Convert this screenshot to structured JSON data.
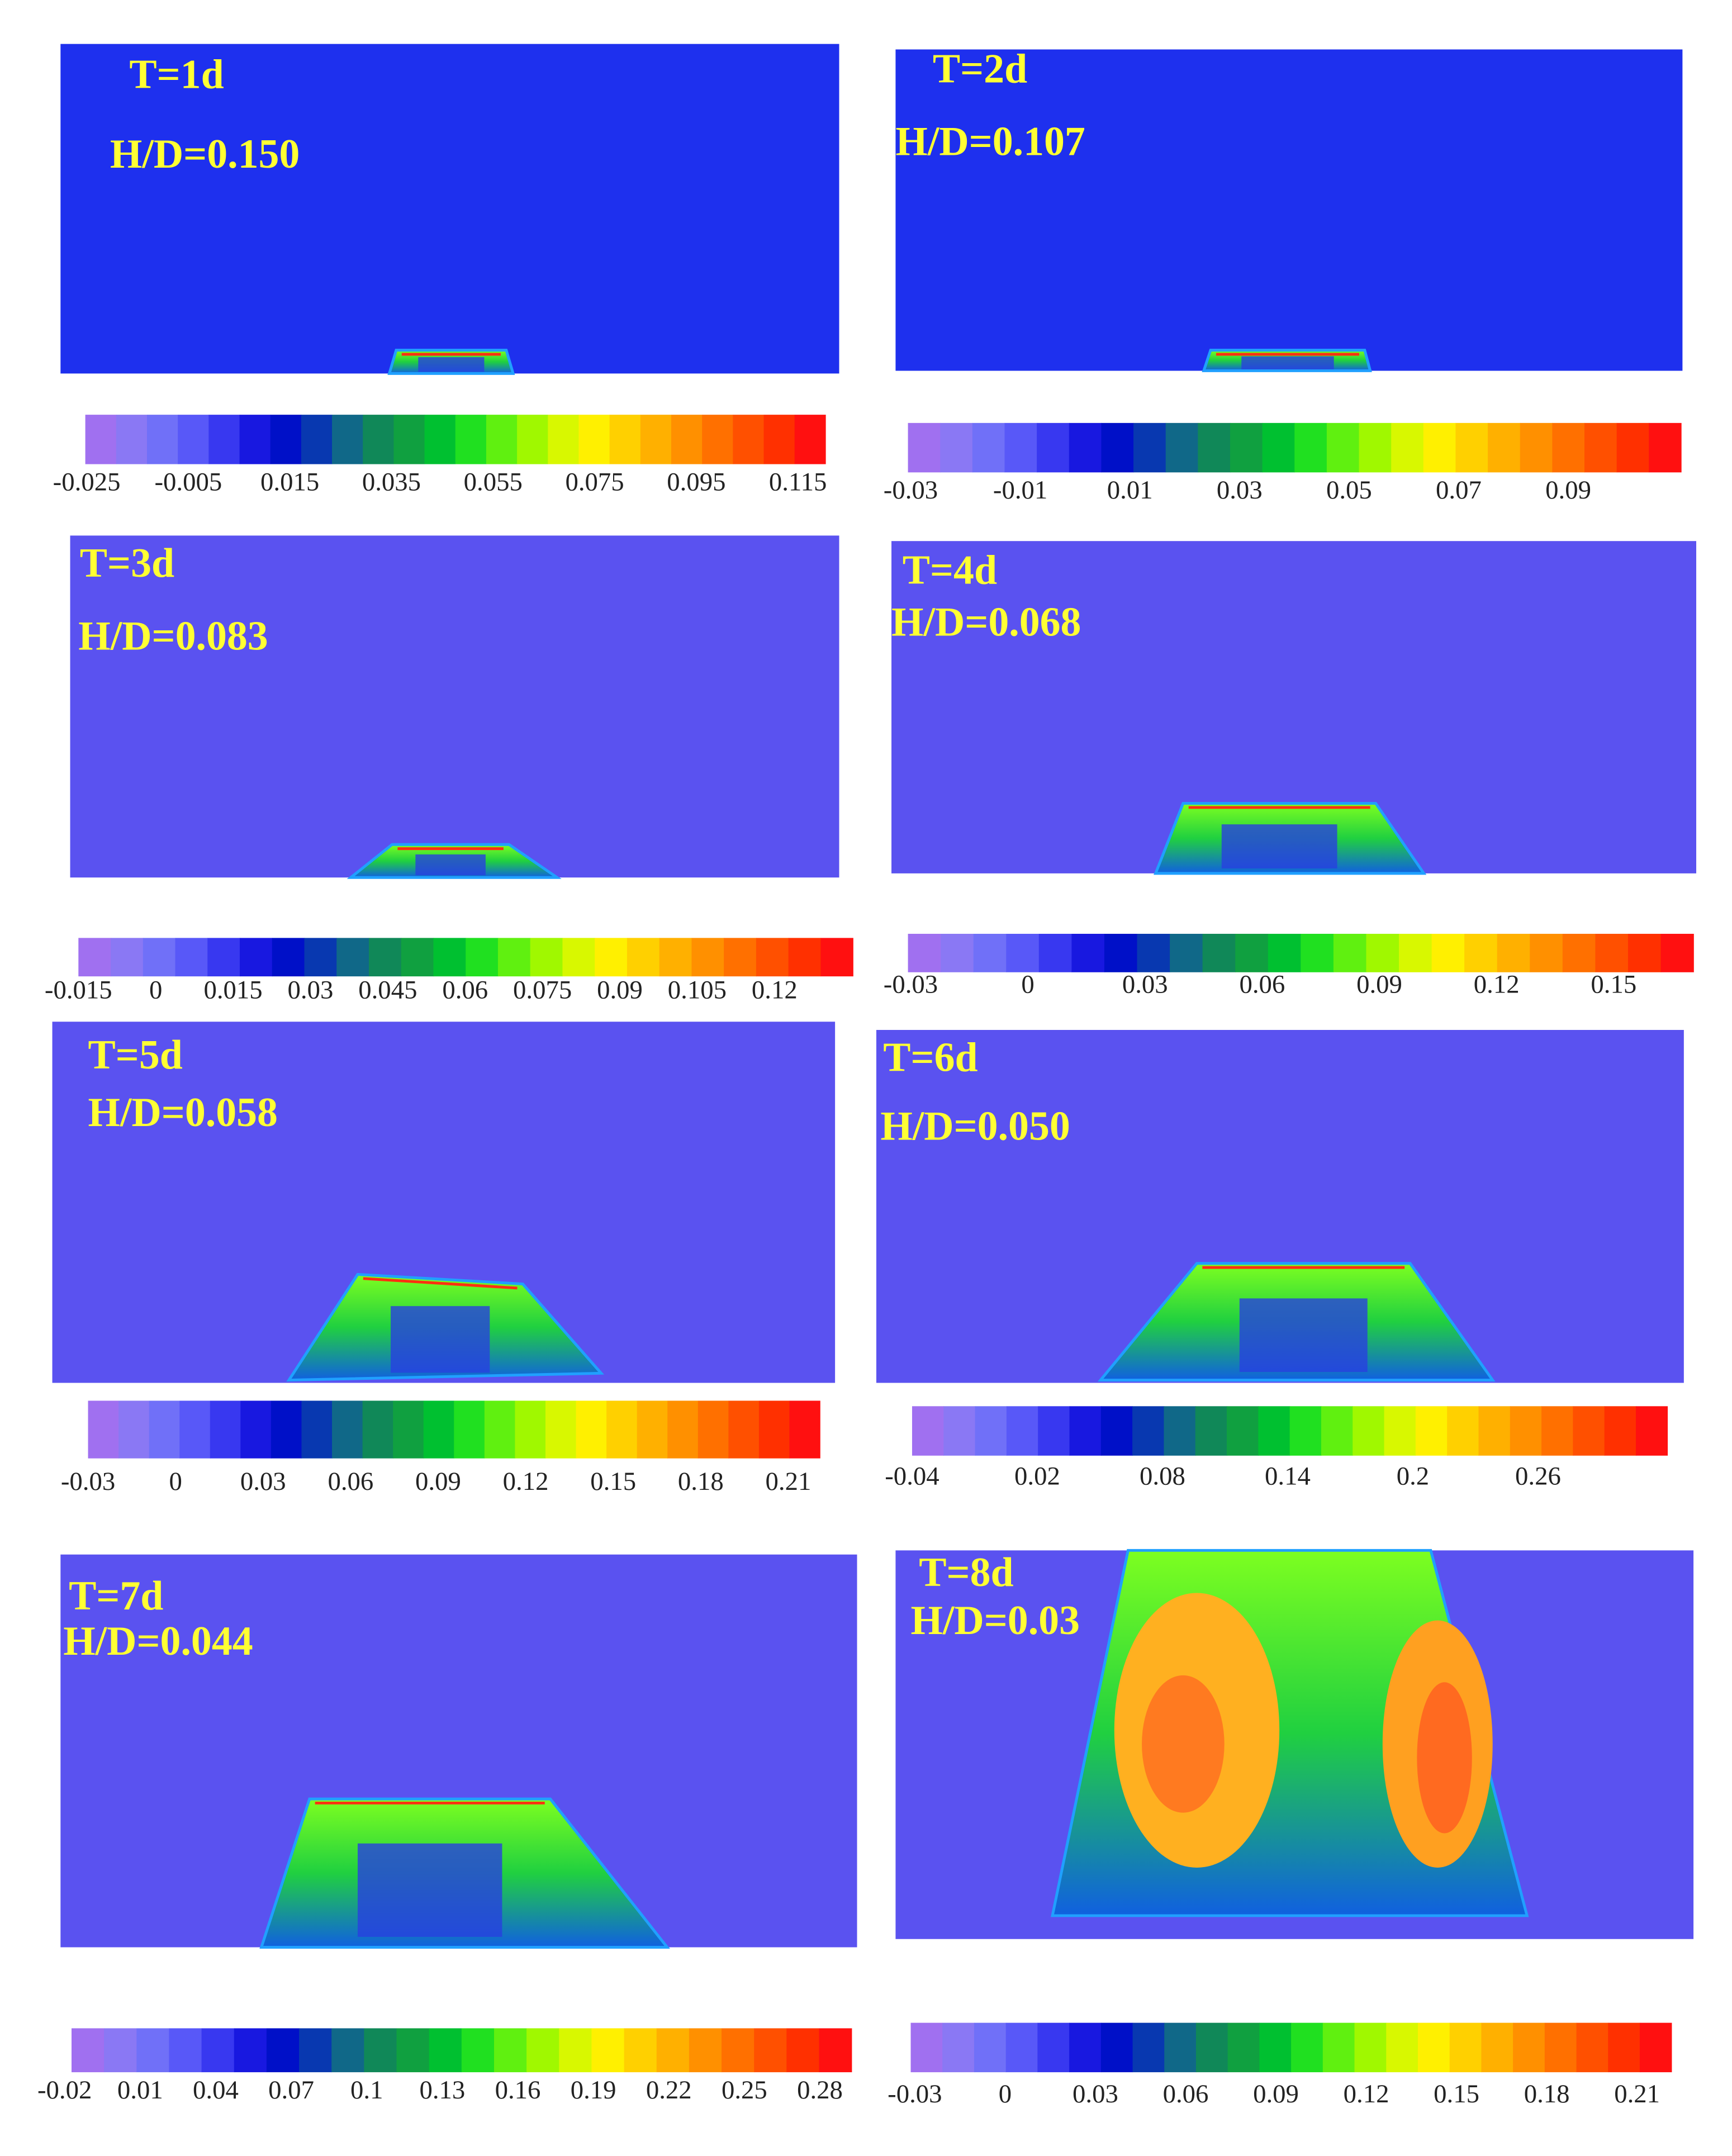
{
  "panels": [
    {
      "time": "T=1d",
      "ratio": "H/D=0.150",
      "colorbar": [
        "-0.025",
        "-0.005",
        "0.015",
        "0.035",
        "0.055",
        "0.075",
        "0.095",
        "0.115"
      ]
    },
    {
      "time": "T=2d",
      "ratio": "H/D=0.107",
      "colorbar": [
        "-0.03",
        "-0.01",
        "0.01",
        "0.03",
        "0.05",
        "0.07",
        "0.09"
      ]
    },
    {
      "time": "T=3d",
      "ratio": "H/D=0.083",
      "colorbar": [
        "-0.015",
        "0",
        "0.015",
        "0.03",
        "0.045",
        "0.06",
        "0.075",
        "0.09",
        "0.105",
        "0.12"
      ]
    },
    {
      "time": "T=4d",
      "ratio": "H/D=0.068",
      "colorbar": [
        "-0.03",
        "0",
        "0.03",
        "0.06",
        "0.09",
        "0.12",
        "0.15"
      ]
    },
    {
      "time": "T=5d",
      "ratio": "H/D=0.058",
      "colorbar": [
        "-0.03",
        "0",
        "0.03",
        "0.06",
        "0.09",
        "0.12",
        "0.15",
        "0.18",
        "0.21"
      ]
    },
    {
      "time": "T=6d",
      "ratio": "H/D=0.050",
      "colorbar": [
        "-0.04",
        "0.02",
        "0.08",
        "0.14",
        "0.2",
        "0.26"
      ]
    },
    {
      "time": "T=7d",
      "ratio": "H/D=0.044",
      "colorbar": [
        "-0.02",
        "0.01",
        "0.04",
        "0.07",
        "0.1",
        "0.13",
        "0.16",
        "0.19",
        "0.22",
        "0.25",
        "0.28"
      ]
    },
    {
      "time": "T=8d",
      "ratio": "H/D=0.03",
      "colorbar": [
        "-0.03",
        "0",
        "0.03",
        "0.06",
        "0.09",
        "0.12",
        "0.15",
        "0.18",
        "0.21"
      ]
    }
  ]
}
